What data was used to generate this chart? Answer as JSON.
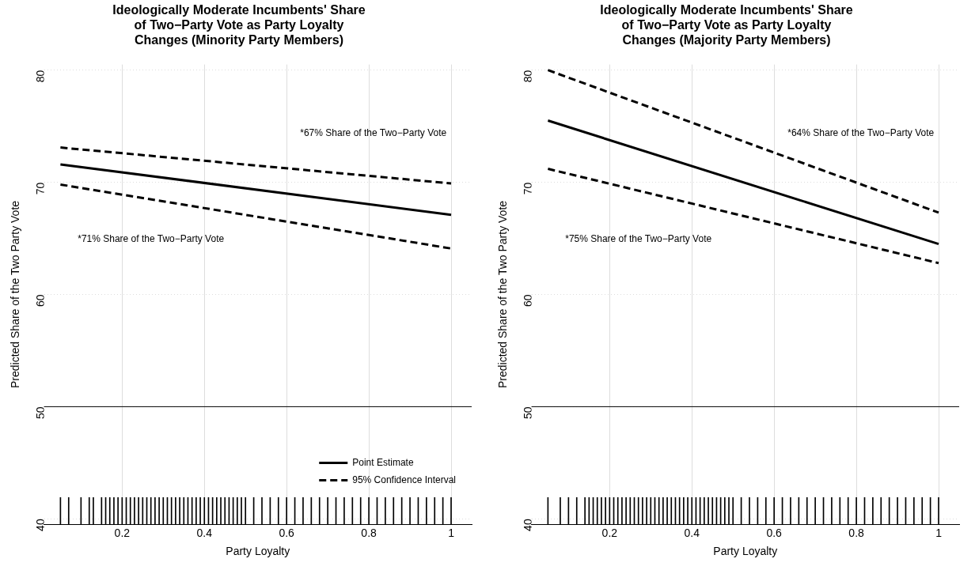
{
  "chart_data": [
    {
      "type": "line",
      "title": "Ideologically Moderate Incumbents' Share\nof Two−Party Vote as Party Loyalty\nChanges (Minority Party Members)",
      "xlabel": "Party Loyalty",
      "ylabel": "Predicted Share of the Two Party Vote",
      "xlim": [
        0.01,
        1.05
      ],
      "ylim": [
        39.5,
        80.5
      ],
      "xticks": [
        0.2,
        0.4,
        0.6,
        0.8,
        1.0
      ],
      "yticks": [
        40,
        50,
        60,
        70,
        80
      ],
      "grid": true,
      "legend": "bottom right",
      "line_style": "solid",
      "marker": "none",
      "ref_lines": [
        {
          "axis": "y",
          "value": 50,
          "color": "#000000",
          "line_style": "solid"
        }
      ],
      "annotations": [
        "*67% Share of the Two−Party Vote",
        "*71% Share of the Two−Party Vote"
      ],
      "series": [
        {
          "name": "Point Estimate",
          "color": "#000000",
          "x": [
            0.05,
            1.0
          ],
          "values": [
            71.6,
            67.1
          ]
        },
        {
          "name": "95% Confidence Interval",
          "color": "#000000",
          "line_style": "dashed",
          "x": [
            0.05,
            1.0
          ],
          "values": [
            73.1,
            69.9
          ]
        },
        {
          "color": "#000000",
          "line_style": "dashed",
          "x": [
            0.05,
            1.0
          ],
          "values": [
            69.8,
            64.1
          ]
        },
        {
          "type": "bar",
          "color": "#000000",
          "x": [
            0.05,
            0.07,
            0.1,
            0.12,
            0.13,
            0.15,
            0.16,
            0.17,
            0.18,
            0.19,
            0.2,
            0.21,
            0.22,
            0.23,
            0.24,
            0.25,
            0.26,
            0.27,
            0.28,
            0.29,
            0.3,
            0.31,
            0.32,
            0.33,
            0.34,
            0.35,
            0.36,
            0.37,
            0.38,
            0.39,
            0.4,
            0.41,
            0.42,
            0.43,
            0.44,
            0.45,
            0.46,
            0.47,
            0.48,
            0.49,
            0.5,
            0.52,
            0.54,
            0.56,
            0.58,
            0.6,
            0.62,
            0.64,
            0.66,
            0.68,
            0.7,
            0.72,
            0.74,
            0.76,
            0.78,
            0.8,
            0.82,
            0.84,
            0.86,
            0.88,
            0.9,
            0.92,
            0.94,
            0.96,
            0.98,
            1.0
          ],
          "values": [
            41.9,
            41.9,
            41.9,
            41.9,
            41.9,
            41.9,
            41.9,
            41.9,
            41.9,
            41.9,
            41.9,
            41.9,
            41.9,
            41.9,
            41.9,
            41.9,
            41.9,
            41.9,
            41.9,
            41.9,
            41.9,
            41.9,
            41.9,
            41.9,
            41.9,
            41.9,
            41.9,
            41.9,
            41.9,
            41.9,
            41.9,
            41.9,
            41.9,
            41.9,
            41.9,
            41.9,
            41.9,
            41.9,
            41.9,
            41.9,
            41.9,
            41.9,
            41.9,
            41.9,
            41.9,
            41.9,
            41.9,
            41.9,
            41.9,
            41.9,
            41.9,
            41.9,
            41.9,
            41.9,
            41.9,
            41.9,
            41.9,
            41.9,
            41.9,
            41.9,
            41.9,
            41.9,
            41.9,
            41.9,
            41.9,
            41.9
          ]
        }
      ]
    },
    {
      "type": "line",
      "title": "Ideologically Moderate Incumbents' Share\nof Two−Party Vote as Party Loyalty\nChanges (Majority Party Members)",
      "xlabel": "Party Loyalty",
      "ylabel": "Predicted Share of the Two Party Vote",
      "xlim": [
        0.01,
        1.05
      ],
      "ylim": [
        39.5,
        80.5
      ],
      "xticks": [
        0.2,
        0.4,
        0.6,
        0.8,
        1.0
      ],
      "yticks": [
        40,
        50,
        60,
        70,
        80
      ],
      "grid": true,
      "legend": false,
      "line_style": "solid",
      "marker": "none",
      "ref_lines": [
        {
          "axis": "y",
          "value": 50,
          "color": "#000000",
          "line_style": "solid"
        }
      ],
      "annotations": [
        "*64% Share of the Two−Party Vote",
        "*75% Share of the Two−Party Vote"
      ],
      "series": [
        {
          "color": "#000000",
          "x": [
            0.05,
            1.0
          ],
          "values": [
            75.5,
            64.5
          ]
        },
        {
          "color": "#000000",
          "line_style": "dashed",
          "x": [
            0.05,
            1.0
          ],
          "values": [
            80.0,
            67.3
          ]
        },
        {
          "color": "#000000",
          "line_style": "dashed",
          "x": [
            0.05,
            1.0
          ],
          "values": [
            71.2,
            62.8
          ]
        },
        {
          "type": "bar",
          "color": "#000000",
          "x": [
            0.05,
            0.08,
            0.1,
            0.12,
            0.14,
            0.15,
            0.16,
            0.17,
            0.18,
            0.19,
            0.2,
            0.21,
            0.22,
            0.23,
            0.24,
            0.25,
            0.26,
            0.27,
            0.28,
            0.29,
            0.3,
            0.31,
            0.32,
            0.33,
            0.34,
            0.35,
            0.36,
            0.37,
            0.38,
            0.39,
            0.4,
            0.41,
            0.42,
            0.43,
            0.44,
            0.45,
            0.46,
            0.47,
            0.48,
            0.49,
            0.5,
            0.52,
            0.54,
            0.56,
            0.58,
            0.6,
            0.62,
            0.64,
            0.66,
            0.68,
            0.7,
            0.72,
            0.74,
            0.76,
            0.78,
            0.8,
            0.82,
            0.84,
            0.86,
            0.88,
            0.9,
            0.92,
            0.94,
            0.96,
            0.98,
            1.0
          ],
          "values": [
            41.9,
            41.9,
            41.9,
            41.9,
            41.9,
            41.9,
            41.9,
            41.9,
            41.9,
            41.9,
            41.9,
            41.9,
            41.9,
            41.9,
            41.9,
            41.9,
            41.9,
            41.9,
            41.9,
            41.9,
            41.9,
            41.9,
            41.9,
            41.9,
            41.9,
            41.9,
            41.9,
            41.9,
            41.9,
            41.9,
            41.9,
            41.9,
            41.9,
            41.9,
            41.9,
            41.9,
            41.9,
            41.9,
            41.9,
            41.9,
            41.9,
            41.9,
            41.9,
            41.9,
            41.9,
            41.9,
            41.9,
            41.9,
            41.9,
            41.9,
            41.9,
            41.9,
            41.9,
            41.9,
            41.9,
            41.9,
            41.9,
            41.9,
            41.9,
            41.9,
            41.9,
            41.9,
            41.9,
            41.9,
            41.9,
            41.9
          ]
        }
      ]
    }
  ]
}
